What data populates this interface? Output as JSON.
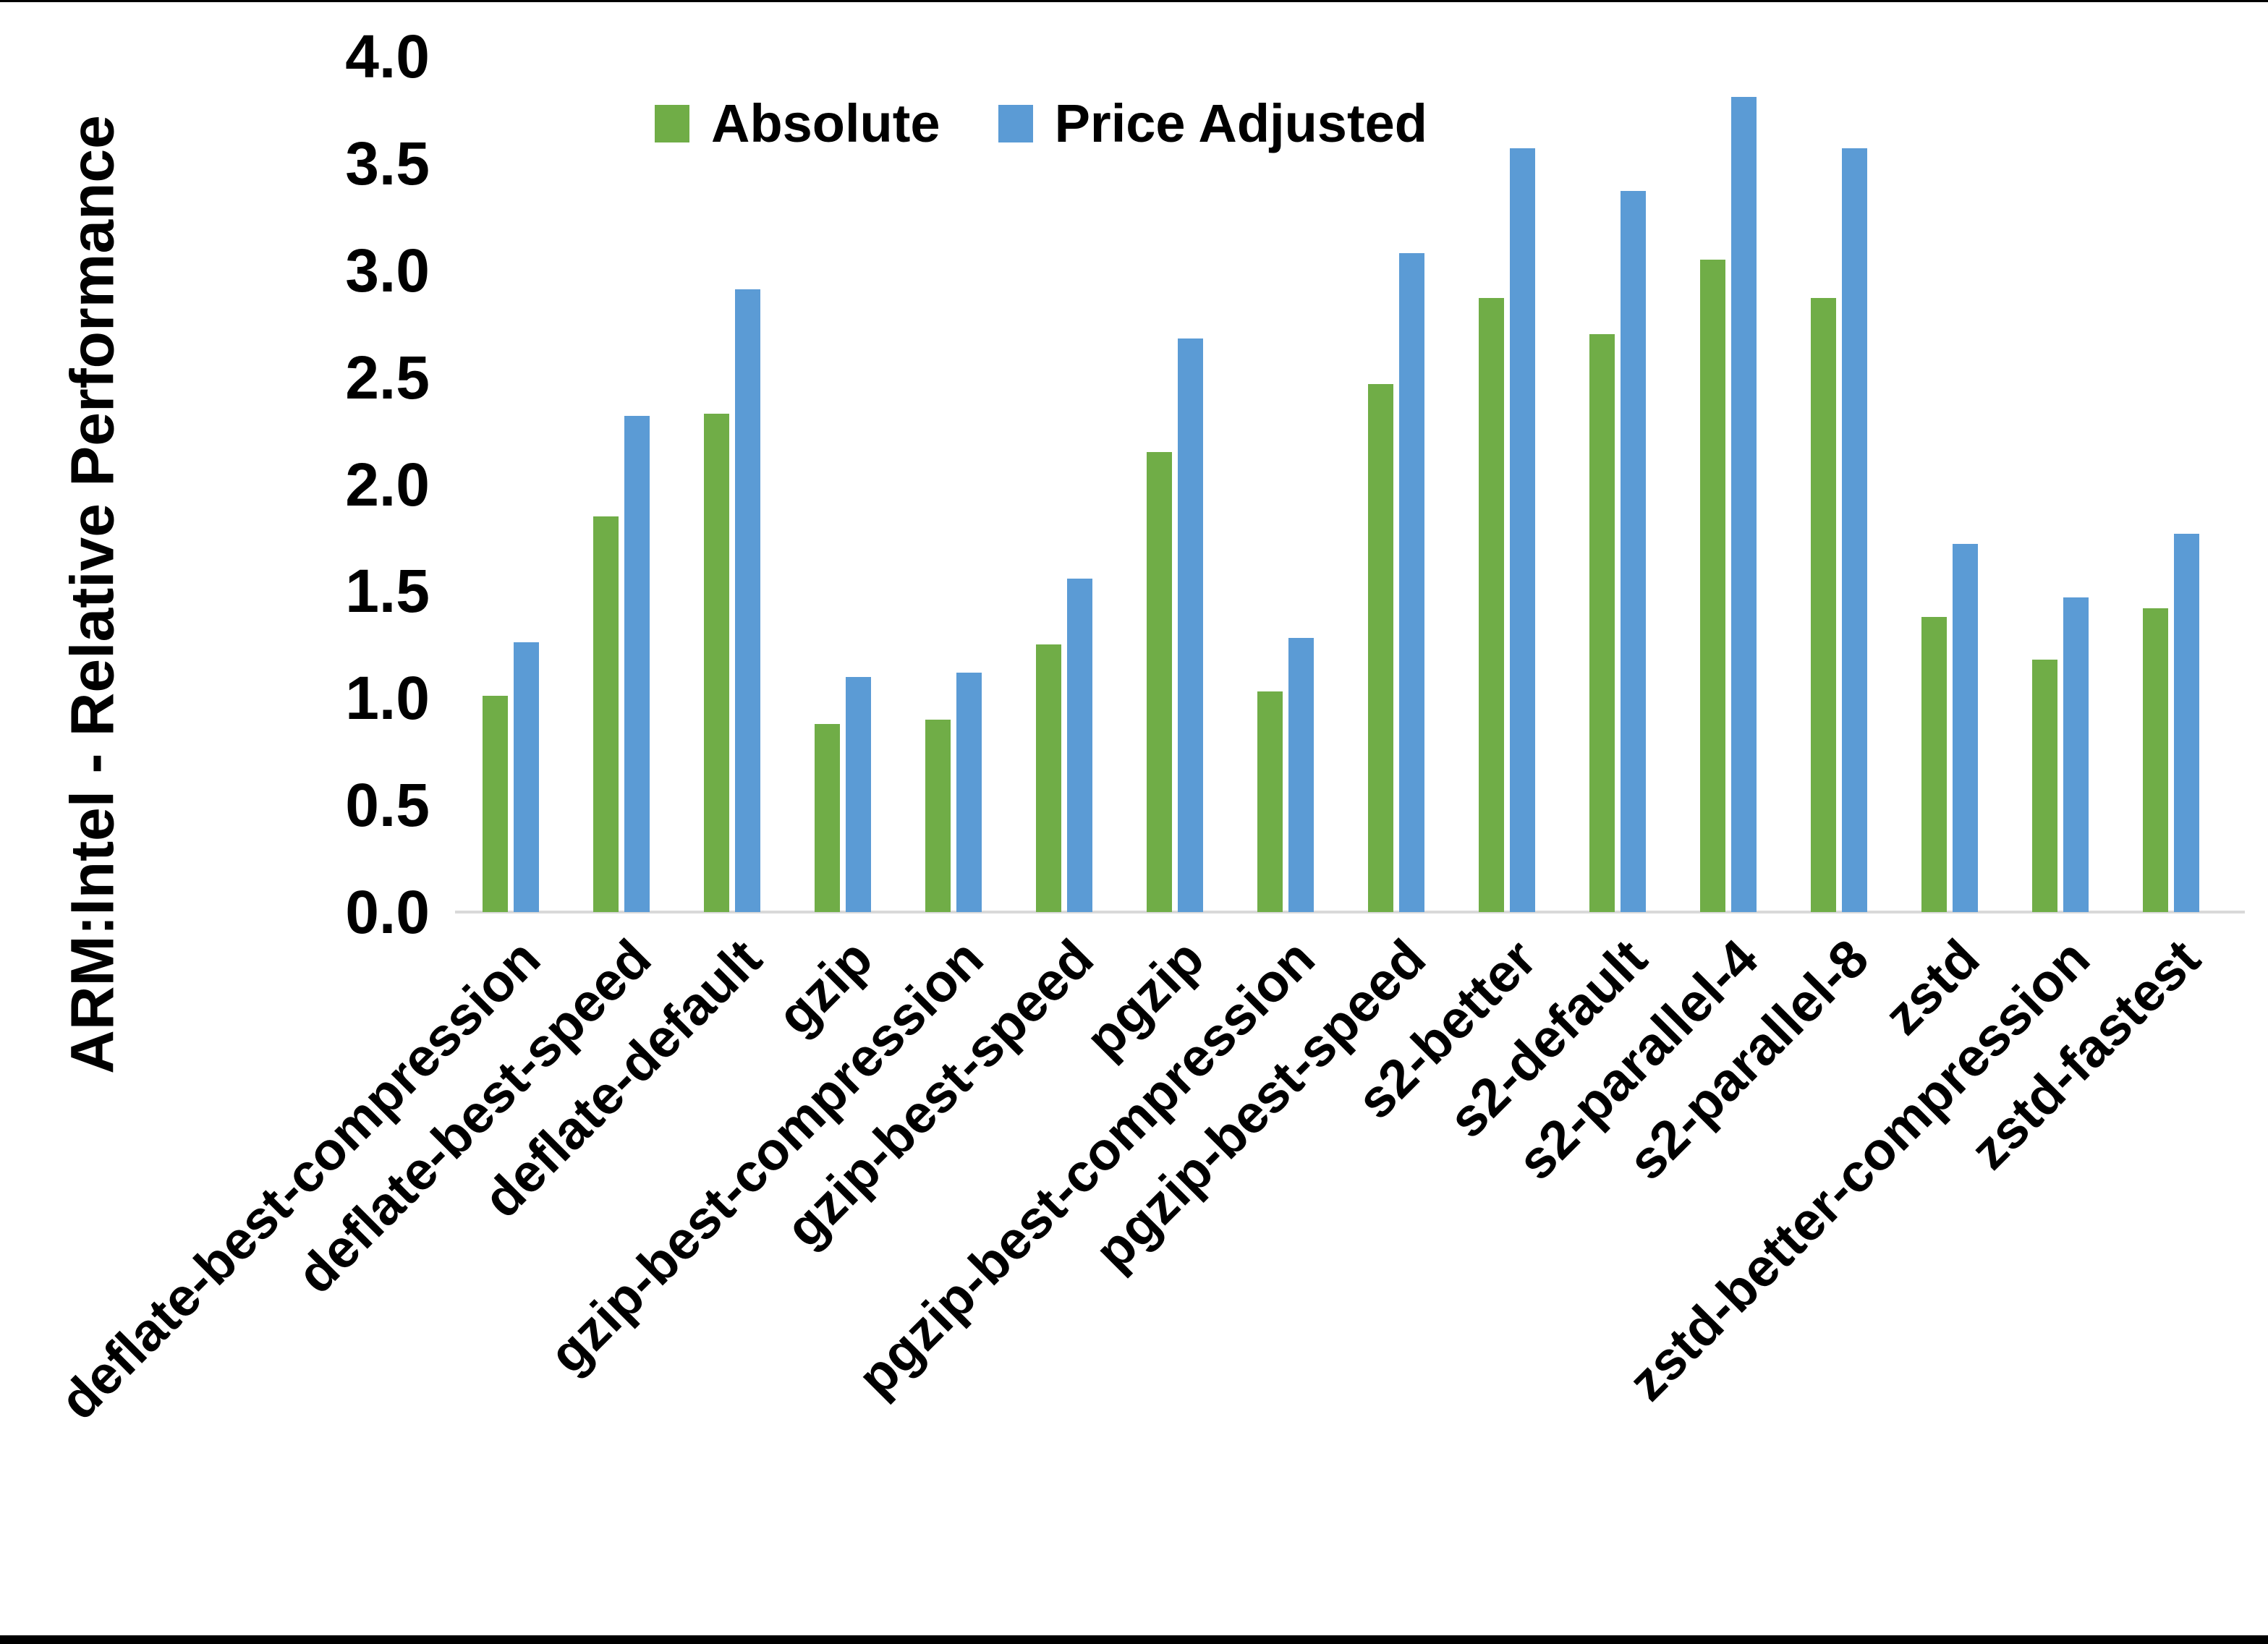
{
  "figure": {
    "background_color": "#ffffff",
    "top_border_color": "#000000",
    "bottom_border_color": "#000000"
  },
  "chart_data": {
    "type": "bar",
    "title": "",
    "xlabel": "",
    "ylabel": "ARM:Intel - Relative Performance",
    "ylim": [
      0.0,
      4.0
    ],
    "ytick_step": 0.5,
    "ytick_decimals": 1,
    "grid": false,
    "legend_position": "top-center",
    "axis_line_color": "#d9d9d9",
    "categories": [
      "deflate-best-compression",
      "deflate-best-speed",
      "deflate-default",
      "gzip",
      "gzip-best-compression",
      "gzip-best-speed",
      "pgzip",
      "pgzip-best-compression",
      "pgzip-best-speed",
      "s2-better",
      "s2-default",
      "s2-parallel-4",
      "s2-parallel-8",
      "zstd",
      "zstd-better-compression",
      "zstd-fastest"
    ],
    "series": [
      {
        "name": "Absolute",
        "color": "#70AD47",
        "values": [
          1.01,
          1.85,
          2.33,
          0.88,
          0.9,
          1.25,
          2.15,
          1.03,
          2.47,
          2.87,
          2.7,
          3.05,
          2.87,
          1.38,
          1.18,
          1.42
        ]
      },
      {
        "name": "Price Adjusted",
        "color": "#5B9BD5",
        "values": [
          1.26,
          2.32,
          2.91,
          1.1,
          1.12,
          1.56,
          2.68,
          1.28,
          3.08,
          3.57,
          3.37,
          3.81,
          3.57,
          1.72,
          1.47,
          1.77
        ]
      }
    ]
  }
}
